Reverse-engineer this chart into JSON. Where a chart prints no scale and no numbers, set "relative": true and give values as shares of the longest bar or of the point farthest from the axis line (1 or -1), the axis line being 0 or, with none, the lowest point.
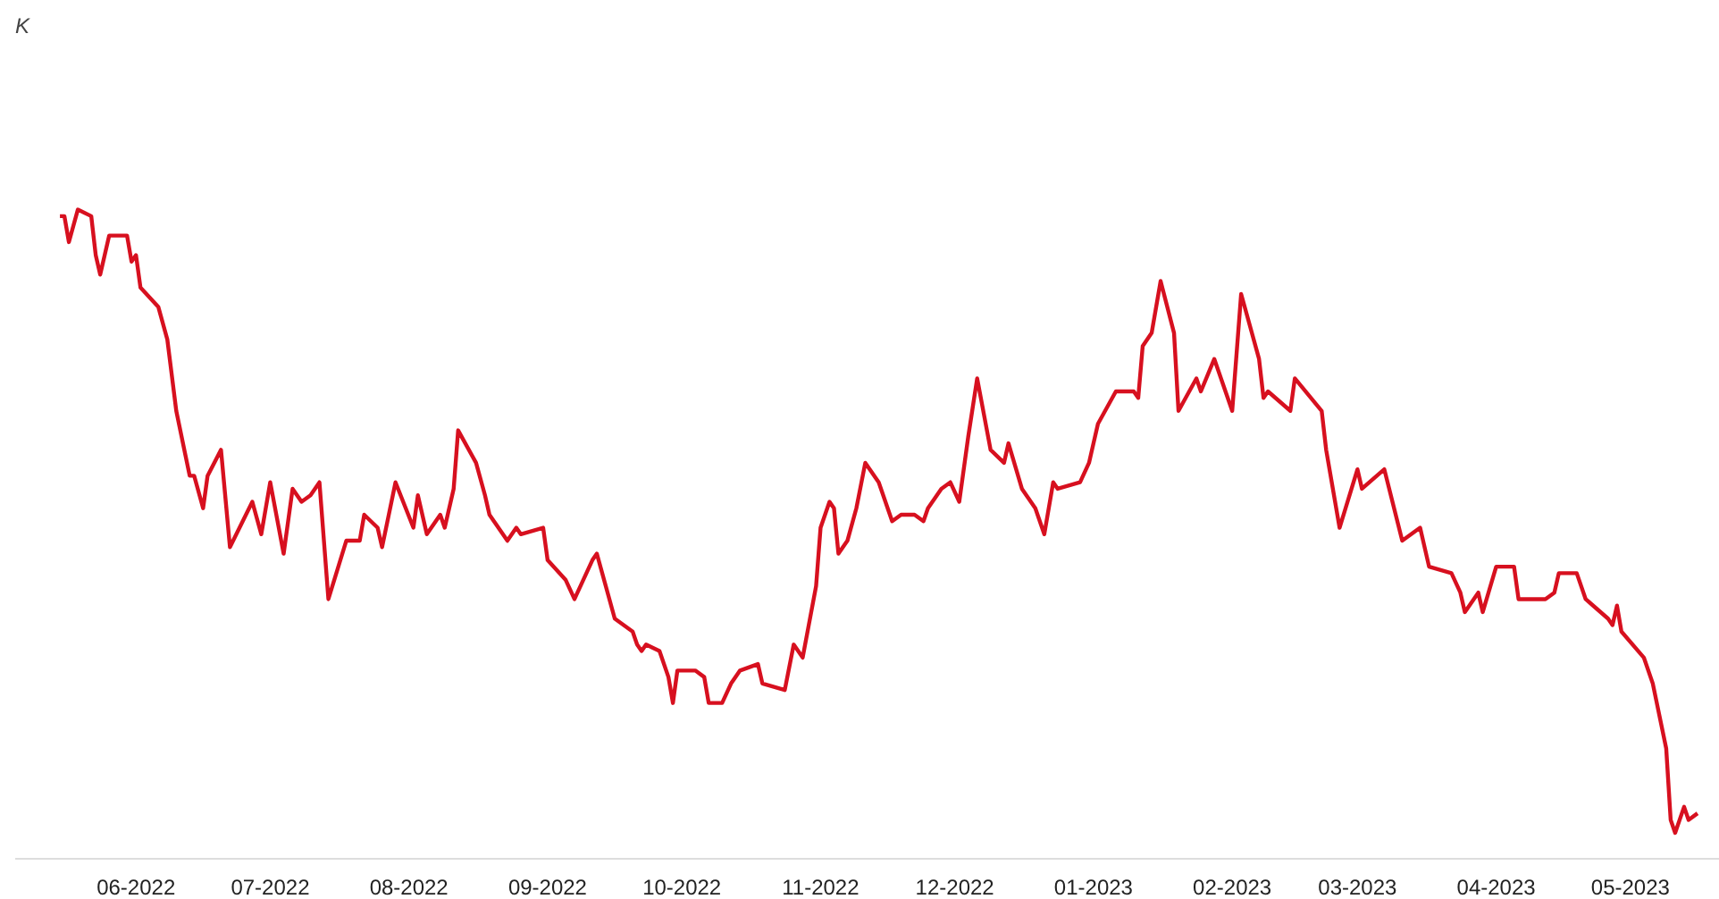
{
  "chart_data": {
    "type": "line",
    "subtitle": "K",
    "relative": true,
    "grid": false,
    "marker": "none",
    "line_style": "solid",
    "xlim": [
      "2022-05-05",
      "2023-05-21"
    ],
    "xticks": [
      {
        "value": "2022-06-01",
        "label": "06-2022"
      },
      {
        "value": "2022-07-01",
        "label": "07-2022"
      },
      {
        "value": "2022-08-01",
        "label": "08-2022"
      },
      {
        "value": "2022-09-01",
        "label": "09-2022"
      },
      {
        "value": "2022-10-01",
        "label": "10-2022"
      },
      {
        "value": "2022-11-01",
        "label": "11-2022"
      },
      {
        "value": "2022-12-01",
        "label": "12-2022"
      },
      {
        "value": "2023-01-01",
        "label": "01-2023"
      },
      {
        "value": "2023-02-01",
        "label": "02-2023"
      },
      {
        "value": "2023-03-01",
        "label": "03-2023"
      },
      {
        "value": "2023-04-01",
        "label": "04-2023"
      },
      {
        "value": "2023-05-01",
        "label": "05-2023"
      }
    ],
    "x": [
      "2022-05-15",
      "2022-05-16",
      "2022-05-17",
      "2022-05-19",
      "2022-05-22",
      "2022-05-23",
      "2022-05-24",
      "2022-05-26",
      "2022-05-30",
      "2022-05-31",
      "2022-06-01",
      "2022-06-02",
      "2022-06-06",
      "2022-06-08",
      "2022-06-10",
      "2022-06-13",
      "2022-06-14",
      "2022-06-16",
      "2022-06-17",
      "2022-06-20",
      "2022-06-22",
      "2022-06-27",
      "2022-06-29",
      "2022-07-01",
      "2022-07-04",
      "2022-07-06",
      "2022-07-08",
      "2022-07-10",
      "2022-07-12",
      "2022-07-14",
      "2022-07-18",
      "2022-07-21",
      "2022-07-22",
      "2022-07-25",
      "2022-07-26",
      "2022-07-29",
      "2022-08-02",
      "2022-08-03",
      "2022-08-05",
      "2022-08-08",
      "2022-08-09",
      "2022-08-11",
      "2022-08-12",
      "2022-08-16",
      "2022-08-18",
      "2022-08-19",
      "2022-08-23",
      "2022-08-25",
      "2022-08-26",
      "2022-08-31",
      "2022-09-01",
      "2022-09-05",
      "2022-09-07",
      "2022-09-11",
      "2022-09-12",
      "2022-09-16",
      "2022-09-20",
      "2022-09-21",
      "2022-09-22",
      "2022-09-23",
      "2022-09-26",
      "2022-09-28",
      "2022-09-29",
      "2022-09-30",
      "2022-10-04",
      "2022-10-06",
      "2022-10-07",
      "2022-10-10",
      "2022-10-12",
      "2022-10-14",
      "2022-10-18",
      "2022-10-19",
      "2022-10-24",
      "2022-10-26",
      "2022-10-28",
      "2022-10-31",
      "2022-11-01",
      "2022-11-03",
      "2022-11-04",
      "2022-11-05",
      "2022-11-07",
      "2022-11-09",
      "2022-11-11",
      "2022-11-14",
      "2022-11-17",
      "2022-11-19",
      "2022-11-22",
      "2022-11-24",
      "2022-11-25",
      "2022-11-28",
      "2022-11-30",
      "2022-12-02",
      "2022-12-04",
      "2022-12-06",
      "2022-12-09",
      "2022-12-12",
      "2022-12-13",
      "2022-12-16",
      "2022-12-19",
      "2022-12-21",
      "2022-12-23",
      "2022-12-24",
      "2022-12-29",
      "2022-12-31",
      "2023-01-02",
      "2023-01-06",
      "2023-01-10",
      "2023-01-11",
      "2023-01-12",
      "2023-01-14",
      "2023-01-16",
      "2023-01-19",
      "2023-01-20",
      "2023-01-24",
      "2023-01-25",
      "2023-01-28",
      "2023-02-01",
      "2023-02-03",
      "2023-02-07",
      "2023-02-08",
      "2023-02-09",
      "2023-02-14",
      "2023-02-15",
      "2023-02-21",
      "2023-02-22",
      "2023-02-25",
      "2023-03-01",
      "2023-03-02",
      "2023-03-07",
      "2023-03-11",
      "2023-03-15",
      "2023-03-17",
      "2023-03-22",
      "2023-03-24",
      "2023-03-25",
      "2023-03-28",
      "2023-03-29",
      "2023-04-01",
      "2023-04-05",
      "2023-04-06",
      "2023-04-12",
      "2023-04-14",
      "2023-04-15",
      "2023-04-19",
      "2023-04-21",
      "2023-04-26",
      "2023-04-27",
      "2023-04-28",
      "2023-04-29",
      "2023-05-04",
      "2023-05-06",
      "2023-05-09",
      "2023-05-10",
      "2023-05-11",
      "2023-05-13",
      "2023-05-14",
      "2023-05-16"
    ],
    "series": [
      {
        "color": "#d7101f",
        "values": [
          0.99,
          0.99,
          0.95,
          1.0,
          0.99,
          0.93,
          0.9,
          0.96,
          0.96,
          0.92,
          0.93,
          0.88,
          0.85,
          0.8,
          0.69,
          0.59,
          0.59,
          0.54,
          0.59,
          0.63,
          0.48,
          0.55,
          0.5,
          0.58,
          0.47,
          0.57,
          0.55,
          0.56,
          0.58,
          0.4,
          0.49,
          0.49,
          0.53,
          0.51,
          0.48,
          0.58,
          0.51,
          0.56,
          0.5,
          0.53,
          0.51,
          0.57,
          0.66,
          0.61,
          0.56,
          0.53,
          0.49,
          0.51,
          0.5,
          0.51,
          0.46,
          0.43,
          0.4,
          0.46,
          0.47,
          0.37,
          0.35,
          0.33,
          0.32,
          0.33,
          0.32,
          0.28,
          0.24,
          0.29,
          0.29,
          0.28,
          0.24,
          0.24,
          0.27,
          0.29,
          0.3,
          0.27,
          0.26,
          0.33,
          0.31,
          0.42,
          0.51,
          0.55,
          0.54,
          0.47,
          0.49,
          0.54,
          0.61,
          0.58,
          0.52,
          0.53,
          0.53,
          0.52,
          0.54,
          0.57,
          0.58,
          0.55,
          0.65,
          0.74,
          0.63,
          0.61,
          0.64,
          0.57,
          0.54,
          0.5,
          0.58,
          0.57,
          0.58,
          0.61,
          0.67,
          0.72,
          0.72,
          0.71,
          0.79,
          0.81,
          0.89,
          0.81,
          0.69,
          0.74,
          0.72,
          0.77,
          0.69,
          0.87,
          0.77,
          0.71,
          0.72,
          0.69,
          0.74,
          0.69,
          0.63,
          0.51,
          0.6,
          0.57,
          0.6,
          0.49,
          0.51,
          0.45,
          0.44,
          0.41,
          0.38,
          0.41,
          0.38,
          0.45,
          0.45,
          0.4,
          0.4,
          0.41,
          0.44,
          0.44,
          0.4,
          0.37,
          0.36,
          0.39,
          0.35,
          0.31,
          0.27,
          0.17,
          0.06,
          0.04,
          0.08,
          0.06,
          0.07
        ]
      }
    ]
  }
}
